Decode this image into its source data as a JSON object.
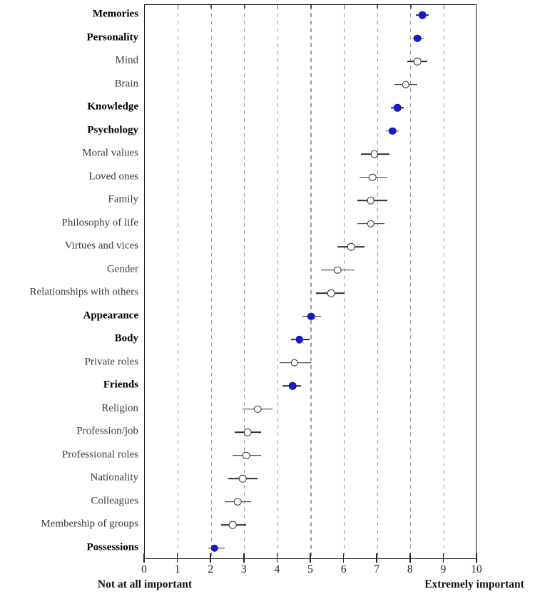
{
  "colors": {
    "highlight_marker": "#1a1acd",
    "open_marker_fill": "#ffffff",
    "marker_stroke": "#2e2e2e",
    "errorbar": "#2e2e2e",
    "gridline": "#9b9b9b",
    "axis_box": "#111111",
    "label_regular": "#3d3d3d",
    "label_bold": "#000000"
  },
  "axis": {
    "caption_left": "Not at all important",
    "caption_right": "Extremely important",
    "tick_labels": [
      "0",
      "1",
      "2",
      "3",
      "4",
      "5",
      "6",
      "7",
      "8",
      "9",
      "10"
    ]
  },
  "chart_data": {
    "type": "scatter",
    "orientation": "horizontal-dotplot",
    "title": "",
    "xlabel": "",
    "ylabel": "",
    "xlim": [
      0,
      10
    ],
    "x_ticks": [
      0,
      1,
      2,
      3,
      4,
      5,
      6,
      7,
      8,
      9,
      10
    ],
    "grid": "vertical dashed lines at integers 1-9",
    "legend": "none",
    "marker_note": "filled blue dot + bold label = highlighted category; open circle = regular category; horizontal error bars without caps",
    "points": [
      {
        "label": "Memories",
        "value": 8.35,
        "ci_low": 8.15,
        "ci_high": 8.55,
        "highlighted": true
      },
      {
        "label": "Personality",
        "value": 8.2,
        "ci_low": 8.05,
        "ci_high": 8.4,
        "highlighted": true
      },
      {
        "label": "Mind",
        "value": 8.2,
        "ci_low": 7.9,
        "ci_high": 8.5,
        "highlighted": false
      },
      {
        "label": "Brain",
        "value": 7.85,
        "ci_low": 7.5,
        "ci_high": 8.2,
        "highlighted": false
      },
      {
        "label": "Knowledge",
        "value": 7.6,
        "ci_low": 7.4,
        "ci_high": 7.8,
        "highlighted": true
      },
      {
        "label": "Psychology",
        "value": 7.45,
        "ci_low": 7.25,
        "ci_high": 7.65,
        "highlighted": true
      },
      {
        "label": "Moral values",
        "value": 6.9,
        "ci_low": 6.5,
        "ci_high": 7.35,
        "highlighted": false
      },
      {
        "label": "Loved ones",
        "value": 6.85,
        "ci_low": 6.45,
        "ci_high": 7.3,
        "highlighted": false
      },
      {
        "label": "Family",
        "value": 6.8,
        "ci_low": 6.4,
        "ci_high": 7.3,
        "highlighted": false
      },
      {
        "label": "Philosophy of life",
        "value": 6.8,
        "ci_low": 6.4,
        "ci_high": 7.2,
        "highlighted": false
      },
      {
        "label": "Virtues and vices",
        "value": 6.2,
        "ci_low": 5.8,
        "ci_high": 6.6,
        "highlighted": false
      },
      {
        "label": "Gender",
        "value": 5.8,
        "ci_low": 5.3,
        "ci_high": 6.3,
        "highlighted": false
      },
      {
        "label": "Relationships with others",
        "value": 5.6,
        "ci_low": 5.15,
        "ci_high": 6.0,
        "highlighted": false
      },
      {
        "label": "Appearance",
        "value": 5.0,
        "ci_low": 4.75,
        "ci_high": 5.3,
        "highlighted": true
      },
      {
        "label": "Body",
        "value": 4.65,
        "ci_low": 4.4,
        "ci_high": 4.95,
        "highlighted": true
      },
      {
        "label": "Private roles",
        "value": 4.5,
        "ci_low": 4.05,
        "ci_high": 5.0,
        "highlighted": false
      },
      {
        "label": "Friends",
        "value": 4.45,
        "ci_low": 4.15,
        "ci_high": 4.7,
        "highlighted": true
      },
      {
        "label": "Religion",
        "value": 3.4,
        "ci_low": 2.95,
        "ci_high": 3.85,
        "highlighted": false
      },
      {
        "label": "Profession/job",
        "value": 3.1,
        "ci_low": 2.7,
        "ci_high": 3.5,
        "highlighted": false
      },
      {
        "label": "Professional roles",
        "value": 3.05,
        "ci_low": 2.65,
        "ci_high": 3.5,
        "highlighted": false
      },
      {
        "label": "Nationality",
        "value": 2.95,
        "ci_low": 2.5,
        "ci_high": 3.4,
        "highlighted": false
      },
      {
        "label": "Colleagues",
        "value": 2.8,
        "ci_low": 2.4,
        "ci_high": 3.2,
        "highlighted": false
      },
      {
        "label": "Membership of groups",
        "value": 2.65,
        "ci_low": 2.3,
        "ci_high": 3.05,
        "highlighted": false
      },
      {
        "label": "Possessions",
        "value": 2.1,
        "ci_low": 1.9,
        "ci_high": 2.4,
        "highlighted": true
      }
    ]
  }
}
